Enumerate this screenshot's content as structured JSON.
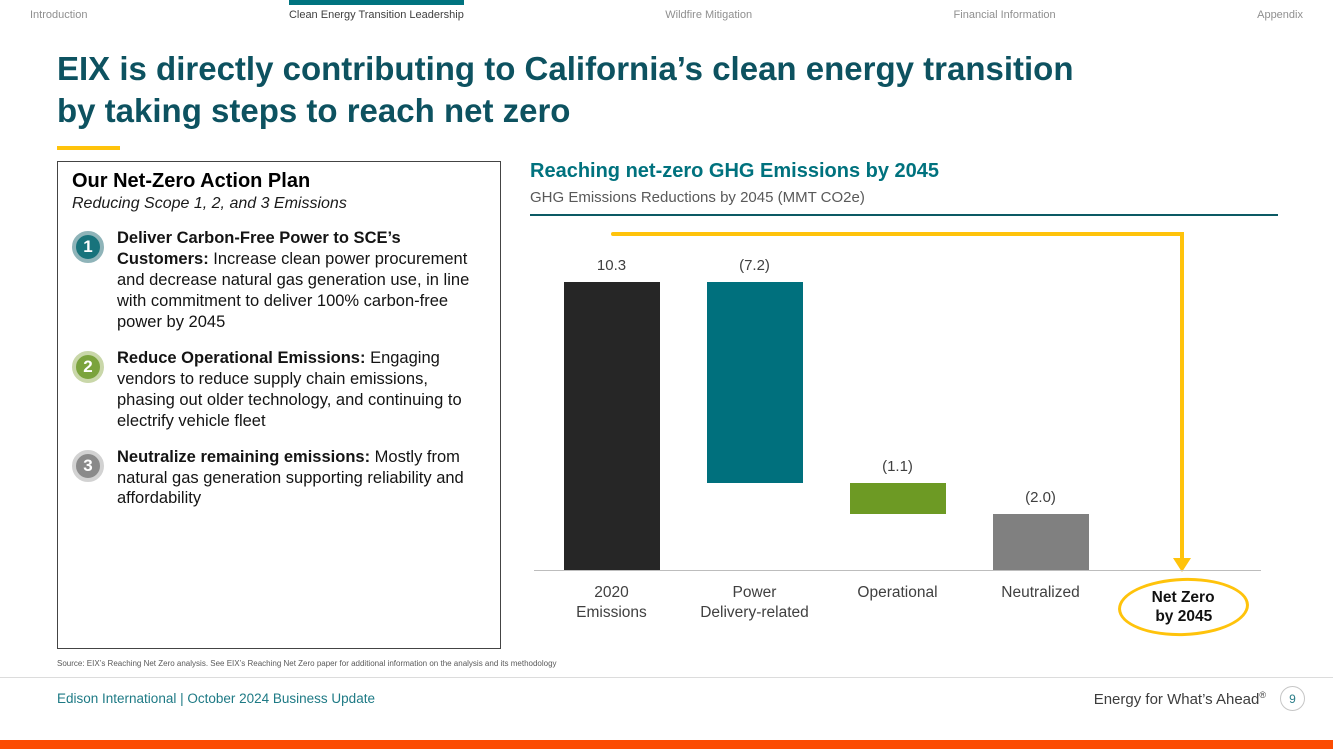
{
  "nav": {
    "items": [
      {
        "label": "Introduction",
        "active": false
      },
      {
        "label": "Clean Energy Transition Leadership",
        "active": true
      },
      {
        "label": "Wildfire Mitigation",
        "active": false
      },
      {
        "label": "Financial Information",
        "active": false
      },
      {
        "label": "Appendix",
        "active": false
      }
    ]
  },
  "title": {
    "line1": "EIX is directly contributing to California’s clean energy transition",
    "line2": "by taking steps to reach net zero"
  },
  "action_plan": {
    "heading": "Our Net-Zero Action Plan",
    "subheading": "Reducing Scope 1, 2, and 3 Emissions",
    "items": [
      {
        "number": "1",
        "bold": "Deliver Carbon-Free Power to SCE’s Customers:",
        "text": " Increase clean power procurement and decrease natural gas generation use, in line with commitment to deliver 100% carbon-free power by 2045"
      },
      {
        "number": "2",
        "bold": "Reduce Operational Emissions:",
        "text": " Engaging vendors to reduce supply chain emissions, phasing out older technology, and continuing to electrify vehicle fleet"
      },
      {
        "number": "3",
        "bold": "Neutralize remaining emissions:",
        "text": " Mostly from natural gas generation supporting reliability and affordability"
      }
    ]
  },
  "chart_data": {
    "type": "bar",
    "subtype": "waterfall",
    "title": "Reaching net-zero GHG Emissions by 2045",
    "subtitle": "GHG Emissions Reductions by 2045 (MMT CO2e)",
    "categories": [
      "2020 Emissions",
      "Power Delivery-related",
      "Operational",
      "Neutralized",
      "Net Zero by 2045"
    ],
    "category_lines": [
      [
        "2020",
        "Emissions"
      ],
      [
        "Power",
        "Delivery-related"
      ],
      [
        "Operational"
      ],
      [
        "Neutralized"
      ]
    ],
    "series": [
      {
        "name": "2020 Emissions",
        "label": "10.3",
        "value": 10.3,
        "start": 0,
        "end": 10.3,
        "color": "#262626"
      },
      {
        "name": "Power Delivery-related",
        "label": "(7.2)",
        "value": -7.2,
        "start": 10.3,
        "end": 3.1,
        "color": "#00707d"
      },
      {
        "name": "Operational",
        "label": "(1.1)",
        "value": -1.1,
        "start": 3.1,
        "end": 2.0,
        "color": "#6d9a24"
      },
      {
        "name": "Neutralized",
        "label": "(2.0)",
        "value": -2.0,
        "start": 2.0,
        "end": 0,
        "color": "#808080"
      }
    ],
    "ylim": [
      0,
      12
    ],
    "annotation": {
      "line1": "Net Zero",
      "line2": "by 2045"
    },
    "connector_color": "#ffc30b",
    "legend": "none",
    "grid": false
  },
  "footer": {
    "source": "Source: EIX’s Reaching Net Zero analysis. See EIX’s Reaching Net Zero paper for additional information on the analysis and its methodology",
    "left": "Edison International | October 2024 Business Update",
    "tagline": "Energy for What’s Ahead",
    "registered": "®",
    "page": "9"
  },
  "colors": {
    "brand_teal": "#00737f",
    "title_teal": "#0d5260",
    "accent_yellow": "#ffc30b",
    "footer_orange": "#fc4c02",
    "step1_circle": "#18737c",
    "step2_circle": "#7ba33d",
    "step3_circle": "#8a8a8a"
  }
}
